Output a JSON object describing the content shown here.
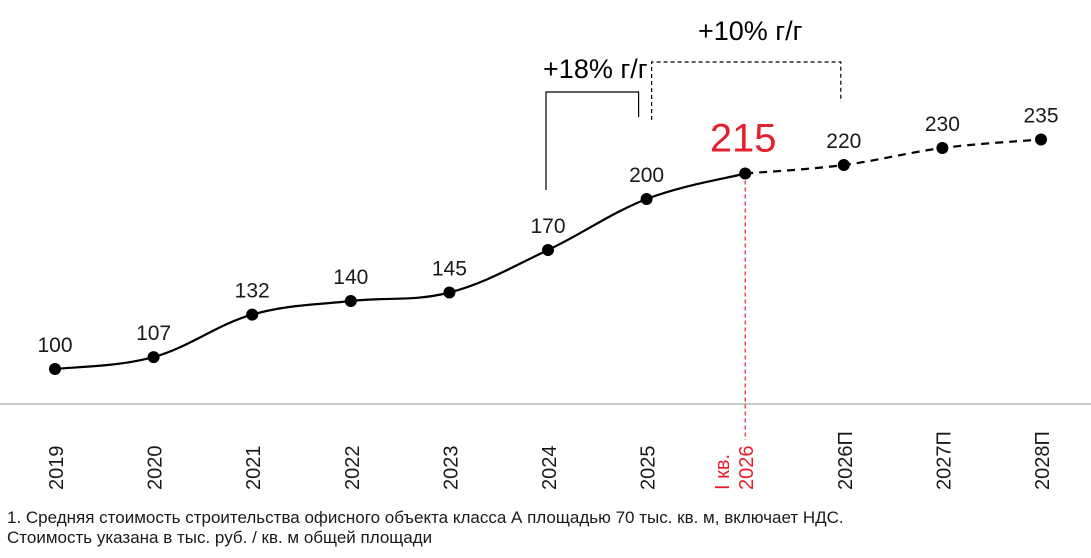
{
  "chart_data": {
    "type": "line",
    "categories": [
      "2019",
      "2020",
      "2021",
      "2022",
      "2023",
      "2024",
      "2025",
      "I кв. 2026",
      "2026П",
      "2027П",
      "2028П"
    ],
    "category_lines": [
      [
        "2019"
      ],
      [
        "2020"
      ],
      [
        "2021"
      ],
      [
        "2022"
      ],
      [
        "2023"
      ],
      [
        "2024"
      ],
      [
        "2025"
      ],
      [
        "I кв.",
        "2026"
      ],
      [
        "2026П"
      ],
      [
        "2027П"
      ],
      [
        "2028П"
      ]
    ],
    "values": [
      100,
      107,
      132,
      140,
      145,
      170,
      200,
      215,
      220,
      230,
      235
    ],
    "value_labels": [
      "100",
      "107",
      "132",
      "140",
      "145",
      "170",
      "200",
      "215",
      "220",
      "230",
      "235"
    ],
    "highlight_index": 7,
    "actual_segment_end_index": 7,
    "forecast_style": "dashed",
    "annotations": [
      {
        "text": "+18% г/г",
        "from": "2024",
        "to": "2025",
        "style": "solid"
      },
      {
        "text": "+10% г/г",
        "from": "2025",
        "to": "2026П",
        "style": "dashed"
      }
    ],
    "title": "",
    "xlabel": "",
    "ylabel": "",
    "colors": {
      "line": "#000000",
      "highlight": "#e3212d",
      "axis": "#9a9a9a",
      "text": "#1a1a1a"
    }
  },
  "footnote": {
    "line1": "1. Средняя стоимость строительства офисного объекта класса А площадью 70 тыс. кв. м, включает НДС.",
    "line2": "Стоимость указана в тыс. руб. / кв. м общей площади"
  }
}
